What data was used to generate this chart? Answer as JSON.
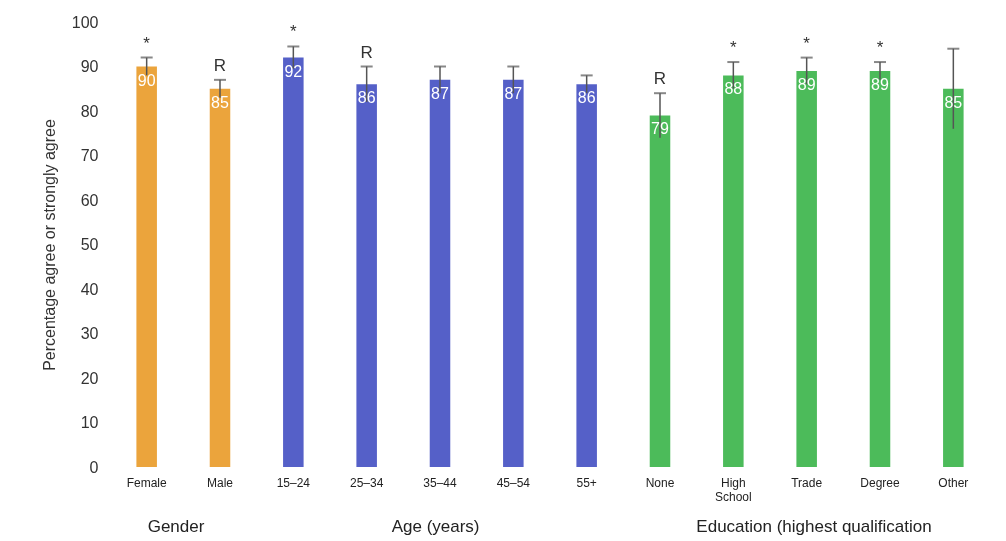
{
  "chart_data": {
    "type": "bar",
    "ylabel": "Percentage agree or strongly agree",
    "categories": [
      "Female",
      "Male",
      "15–24",
      "25–34",
      "35–44",
      "45–54",
      "55+",
      "None",
      "High School",
      "Trade",
      "Degree",
      "Other"
    ],
    "values": [
      90,
      85,
      92,
      86,
      87,
      87,
      86,
      79,
      88,
      89,
      89,
      85
    ],
    "colors": [
      "#eba43c",
      "#eba43c",
      "#5560c8",
      "#5560c8",
      "#5560c8",
      "#5560c8",
      "#5560c8",
      "#4cbb5a",
      "#4cbb5a",
      "#4cbb5a",
      "#4cbb5a",
      "#4cbb5a"
    ],
    "errors": [
      2,
      2,
      2.5,
      4,
      3,
      3,
      2,
      5,
      3,
      3,
      2,
      9
    ],
    "data_labels": true,
    "ylim": [
      0,
      100
    ],
    "yticks": [
      0,
      10,
      20,
      30,
      40,
      50,
      60,
      70,
      80,
      90,
      100
    ],
    "grid": false,
    "annotations": [
      {
        "text": "*",
        "x": "Female",
        "y": 92
      },
      {
        "text": "R",
        "x": "Male",
        "y": 87
      },
      {
        "text": "*",
        "x": "15–24",
        "y": 94.5
      },
      {
        "text": "R",
        "x": "25–34",
        "y": 90
      },
      {
        "text": "R",
        "x": "None",
        "y": 84
      },
      {
        "text": "*",
        "x": "High School",
        "y": 91
      },
      {
        "text": "*",
        "x": "Trade",
        "y": 92
      },
      {
        "text": "*",
        "x": "Degree",
        "y": 91
      },
      "Gender",
      "Age (years)",
      "Education (highest qualification"
    ]
  }
}
